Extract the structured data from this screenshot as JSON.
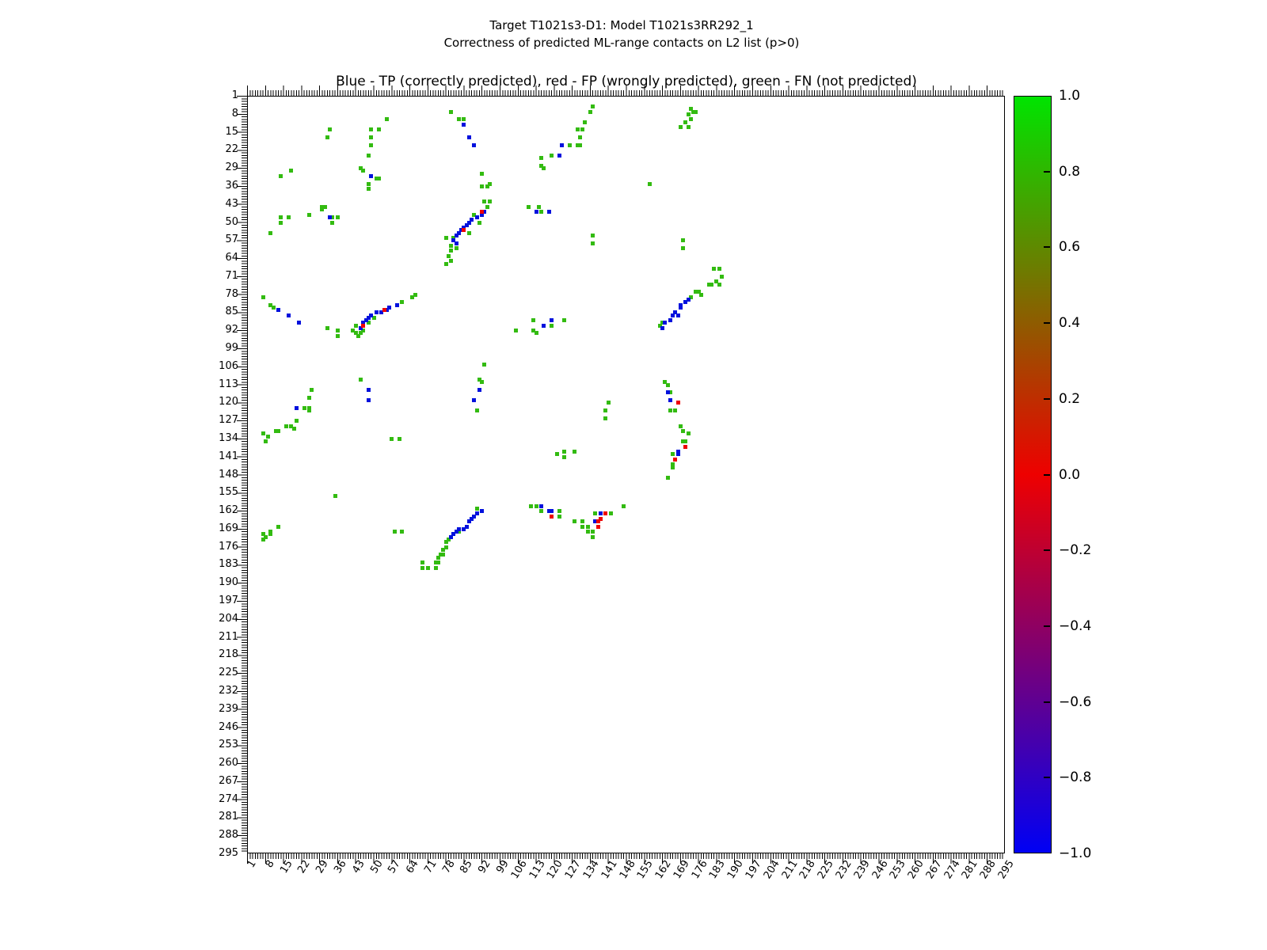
{
  "figure": {
    "suptitle_line1": "Target T1021s3-D1: Model T1021s3RR292_1",
    "suptitle_line2": "Correctness of predicted ML-range contacts on L2 list (p>0)",
    "axes_title": "Blue - TP (correctly predicted), red - FP (wrongly predicted), green - FN (not predicted)"
  },
  "chart_data": {
    "type": "scatter",
    "title": "Blue - TP (correctly predicted), red - FP (wrongly predicted), green - FN (not predicted)",
    "xlabel": "",
    "ylabel": "",
    "xlim": [
      1,
      295
    ],
    "ylim": [
      295,
      1
    ],
    "grid": false,
    "marker": "square",
    "xticks": [
      1,
      8,
      15,
      22,
      29,
      36,
      43,
      50,
      57,
      64,
      71,
      78,
      85,
      92,
      99,
      106,
      113,
      120,
      127,
      134,
      141,
      148,
      155,
      162,
      169,
      176,
      183,
      190,
      197,
      204,
      211,
      218,
      225,
      232,
      239,
      246,
      253,
      260,
      267,
      274,
      281,
      288,
      295
    ],
    "yticks": [
      1,
      8,
      15,
      22,
      29,
      36,
      43,
      50,
      57,
      64,
      71,
      78,
      85,
      92,
      99,
      106,
      113,
      120,
      127,
      134,
      141,
      148,
      155,
      162,
      169,
      176,
      183,
      190,
      197,
      204,
      211,
      218,
      225,
      232,
      239,
      246,
      253,
      260,
      267,
      274,
      281,
      288,
      295
    ],
    "classes": {
      "TP": {
        "label": "TP (correctly predicted)",
        "color": "#0011dd"
      },
      "FP": {
        "label": "FP (wrongly predicted)",
        "color": "#ee0000"
      },
      "FN": {
        "label": "FN (not predicted)",
        "color": "#33bb11"
      }
    },
    "colorbar": {
      "range": [
        -1.0,
        1.0
      ],
      "ticks": [
        "1.0",
        "0.8",
        "0.6",
        "0.4",
        "0.2",
        "0.0",
        "−0.2",
        "−0.4",
        "−0.6",
        "−0.8",
        "−1.0"
      ],
      "gradient_top": "#00e400",
      "gradient_mid": "#ee0000",
      "gradient_bottom": "#0000f4"
    },
    "points": {
      "FN": [
        [
          80,
          7
        ],
        [
          83,
          10
        ],
        [
          85,
          10
        ],
        [
          55,
          10
        ],
        [
          33,
          14
        ],
        [
          49,
          14
        ],
        [
          52,
          14
        ],
        [
          32,
          17
        ],
        [
          49,
          17
        ],
        [
          49,
          20
        ],
        [
          48,
          24
        ],
        [
          18,
          30
        ],
        [
          14,
          32
        ],
        [
          45,
          29
        ],
        [
          46,
          30
        ],
        [
          51,
          33
        ],
        [
          52,
          33
        ],
        [
          48,
          35
        ],
        [
          48,
          37
        ],
        [
          135,
          5
        ],
        [
          134,
          7
        ],
        [
          132,
          11
        ],
        [
          129,
          14
        ],
        [
          131,
          14
        ],
        [
          130,
          17
        ],
        [
          129,
          20
        ],
        [
          130,
          20
        ],
        [
          126,
          20
        ],
        [
          119,
          24
        ],
        [
          115,
          25
        ],
        [
          115,
          28
        ],
        [
          116,
          29
        ],
        [
          92,
          31
        ],
        [
          95,
          35
        ],
        [
          92,
          36
        ],
        [
          94,
          36
        ],
        [
          30,
          44
        ],
        [
          31,
          44
        ],
        [
          30,
          45
        ],
        [
          34,
          48
        ],
        [
          36,
          48
        ],
        [
          34,
          50
        ],
        [
          25,
          47
        ],
        [
          14,
          48
        ],
        [
          17,
          48
        ],
        [
          14,
          50
        ],
        [
          10,
          54
        ],
        [
          93,
          42
        ],
        [
          95,
          42
        ],
        [
          94,
          44
        ],
        [
          89,
          47
        ],
        [
          91,
          50
        ],
        [
          87,
          54
        ],
        [
          81,
          56
        ],
        [
          78,
          56
        ],
        [
          80,
          59
        ],
        [
          82,
          60
        ],
        [
          80,
          61
        ],
        [
          79,
          63
        ],
        [
          80,
          65
        ],
        [
          78,
          66
        ],
        [
          110,
          44
        ],
        [
          114,
          44
        ],
        [
          115,
          46
        ],
        [
          135,
          55
        ],
        [
          135,
          58
        ],
        [
          61,
          81
        ],
        [
          65,
          79
        ],
        [
          66,
          78
        ],
        [
          50,
          87
        ],
        [
          48,
          89
        ],
        [
          43,
          90
        ],
        [
          42,
          92
        ],
        [
          43,
          93
        ],
        [
          44,
          94
        ],
        [
          45,
          93
        ],
        [
          46,
          92
        ],
        [
          36,
          92
        ],
        [
          36,
          94
        ],
        [
          32,
          91
        ],
        [
          7,
          79
        ],
        [
          10,
          82
        ],
        [
          11,
          83
        ],
        [
          112,
          88
        ],
        [
          124,
          88
        ],
        [
          119,
          90
        ],
        [
          105,
          92
        ],
        [
          112,
          92
        ],
        [
          113,
          93
        ],
        [
          93,
          105
        ],
        [
          91,
          111
        ],
        [
          92,
          112
        ],
        [
          90,
          123
        ],
        [
          45,
          111
        ],
        [
          26,
          115
        ],
        [
          25,
          118
        ],
        [
          23,
          122
        ],
        [
          25,
          122
        ],
        [
          25,
          123
        ],
        [
          20,
          127
        ],
        [
          18,
          129
        ],
        [
          16,
          129
        ],
        [
          19,
          130
        ],
        [
          13,
          131
        ],
        [
          12,
          131
        ],
        [
          9,
          133
        ],
        [
          7,
          132
        ],
        [
          8,
          135
        ],
        [
          57,
          134
        ],
        [
          60,
          134
        ],
        [
          121,
          140
        ],
        [
          124,
          139
        ],
        [
          124,
          141
        ],
        [
          128,
          139
        ],
        [
          141,
          120
        ],
        [
          140,
          123
        ],
        [
          140,
          126
        ],
        [
          173,
          6
        ],
        [
          174,
          7
        ],
        [
          175,
          7
        ],
        [
          172,
          8
        ],
        [
          173,
          10
        ],
        [
          171,
          11
        ],
        [
          172,
          13
        ],
        [
          169,
          13
        ],
        [
          157,
          35
        ],
        [
          170,
          57
        ],
        [
          170,
          60
        ],
        [
          182,
          68
        ],
        [
          184,
          68
        ],
        [
          185,
          71
        ],
        [
          180,
          74
        ],
        [
          181,
          74
        ],
        [
          183,
          73
        ],
        [
          184,
          74
        ],
        [
          175,
          77
        ],
        [
          176,
          77
        ],
        [
          177,
          78
        ],
        [
          173,
          79
        ],
        [
          162,
          89
        ],
        [
          161,
          90
        ],
        [
          163,
          112
        ],
        [
          164,
          113
        ],
        [
          165,
          116
        ],
        [
          165,
          123
        ],
        [
          167,
          123
        ],
        [
          169,
          129
        ],
        [
          170,
          131
        ],
        [
          172,
          132
        ],
        [
          170,
          135
        ],
        [
          171,
          135
        ],
        [
          166,
          140
        ],
        [
          166,
          144
        ],
        [
          166,
          145
        ],
        [
          164,
          149
        ],
        [
          35,
          156
        ],
        [
          13,
          168
        ],
        [
          10,
          170
        ],
        [
          7,
          171
        ],
        [
          10,
          171
        ],
        [
          8,
          172
        ],
        [
          7,
          173
        ],
        [
          58,
          170
        ],
        [
          61,
          170
        ],
        [
          90,
          161
        ],
        [
          83,
          170
        ],
        [
          79,
          173
        ],
        [
          78,
          174
        ],
        [
          78,
          176
        ],
        [
          77,
          177
        ],
        [
          76,
          179
        ],
        [
          77,
          179
        ],
        [
          75,
          180
        ],
        [
          75,
          182
        ],
        [
          74,
          182
        ],
        [
          69,
          182
        ],
        [
          69,
          184
        ],
        [
          71,
          184
        ],
        [
          74,
          184
        ],
        [
          111,
          160
        ],
        [
          113,
          160
        ],
        [
          115,
          162
        ],
        [
          122,
          162
        ],
        [
          122,
          164
        ],
        [
          128,
          166
        ],
        [
          131,
          166
        ],
        [
          131,
          168
        ],
        [
          133,
          168
        ],
        [
          133,
          170
        ],
        [
          135,
          170
        ],
        [
          135,
          172
        ],
        [
          136,
          163
        ],
        [
          142,
          163
        ],
        [
          147,
          160
        ]
      ],
      "TP": [
        [
          85,
          12
        ],
        [
          87,
          17
        ],
        [
          89,
          20
        ],
        [
          49,
          32
        ],
        [
          33,
          48
        ],
        [
          123,
          20
        ],
        [
          122,
          24
        ],
        [
          93,
          46
        ],
        [
          92,
          47
        ],
        [
          90,
          48
        ],
        [
          88,
          49
        ],
        [
          87,
          50
        ],
        [
          86,
          51
        ],
        [
          85,
          52
        ],
        [
          84,
          53
        ],
        [
          83,
          54
        ],
        [
          82,
          55
        ],
        [
          81,
          57
        ],
        [
          82,
          58
        ],
        [
          113,
          46
        ],
        [
          118,
          46
        ],
        [
          59,
          82
        ],
        [
          56,
          83
        ],
        [
          55,
          84
        ],
        [
          53,
          85
        ],
        [
          51,
          85
        ],
        [
          49,
          86
        ],
        [
          48,
          87
        ],
        [
          47,
          88
        ],
        [
          46,
          89
        ],
        [
          45,
          91
        ],
        [
          13,
          84
        ],
        [
          17,
          86
        ],
        [
          21,
          89
        ],
        [
          119,
          88
        ],
        [
          116,
          90
        ],
        [
          91,
          115
        ],
        [
          89,
          119
        ],
        [
          48,
          115
        ],
        [
          48,
          119
        ],
        [
          20,
          122
        ],
        [
          172,
          80
        ],
        [
          171,
          81
        ],
        [
          169,
          82
        ],
        [
          169,
          83
        ],
        [
          167,
          85
        ],
        [
          168,
          86
        ],
        [
          166,
          86
        ],
        [
          165,
          88
        ],
        [
          163,
          89
        ],
        [
          162,
          91
        ],
        [
          92,
          162
        ],
        [
          90,
          163
        ],
        [
          89,
          164
        ],
        [
          88,
          165
        ],
        [
          87,
          166
        ],
        [
          86,
          168
        ],
        [
          85,
          169
        ],
        [
          83,
          169
        ],
        [
          82,
          170
        ],
        [
          81,
          171
        ],
        [
          80,
          172
        ],
        [
          115,
          160
        ],
        [
          118,
          162
        ],
        [
          119,
          162
        ],
        [
          138,
          163
        ],
        [
          136,
          166
        ],
        [
          164,
          116
        ],
        [
          165,
          119
        ],
        [
          168,
          139
        ],
        [
          168,
          140
        ]
      ],
      "FP": [
        [
          92,
          46
        ],
        [
          85,
          53
        ],
        [
          54,
          84
        ],
        [
          46,
          90
        ],
        [
          168,
          120
        ],
        [
          171,
          137
        ],
        [
          167,
          142
        ],
        [
          119,
          164
        ],
        [
          140,
          163
        ],
        [
          138,
          165
        ],
        [
          137,
          166
        ],
        [
          137,
          168
        ]
      ]
    }
  }
}
